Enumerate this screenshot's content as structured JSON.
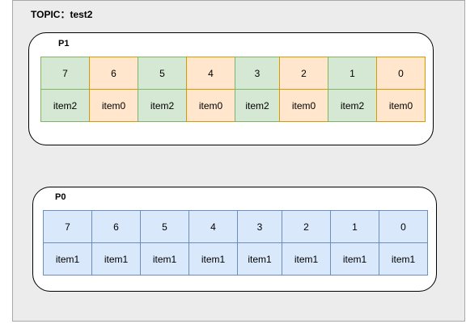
{
  "topic": {
    "label": "TOPIC：test2"
  },
  "partitions": [
    {
      "name": "P1",
      "offsets": [
        "7",
        "6",
        "5",
        "4",
        "3",
        "2",
        "1",
        "0"
      ],
      "items": [
        "item2",
        "item0",
        "item2",
        "item0",
        "item2",
        "item0",
        "item2",
        "item0"
      ],
      "colors": [
        "green",
        "orange",
        "green",
        "orange",
        "green",
        "orange",
        "green",
        "orange"
      ]
    },
    {
      "name": "P0",
      "offsets": [
        "7",
        "6",
        "5",
        "4",
        "3",
        "2",
        "1",
        "0"
      ],
      "items": [
        "item1",
        "item1",
        "item1",
        "item1",
        "item1",
        "item1",
        "item1",
        "item1"
      ],
      "colors": [
        "blue",
        "blue",
        "blue",
        "blue",
        "blue",
        "blue",
        "blue",
        "blue"
      ]
    }
  ],
  "palette": {
    "green": {
      "fill": "#d5e8d4",
      "stroke": "#82b366"
    },
    "orange": {
      "fill": "#ffe6cc",
      "stroke": "#d79b00"
    },
    "blue": {
      "fill": "#dae8fc",
      "stroke": "#6c8ebf"
    }
  }
}
